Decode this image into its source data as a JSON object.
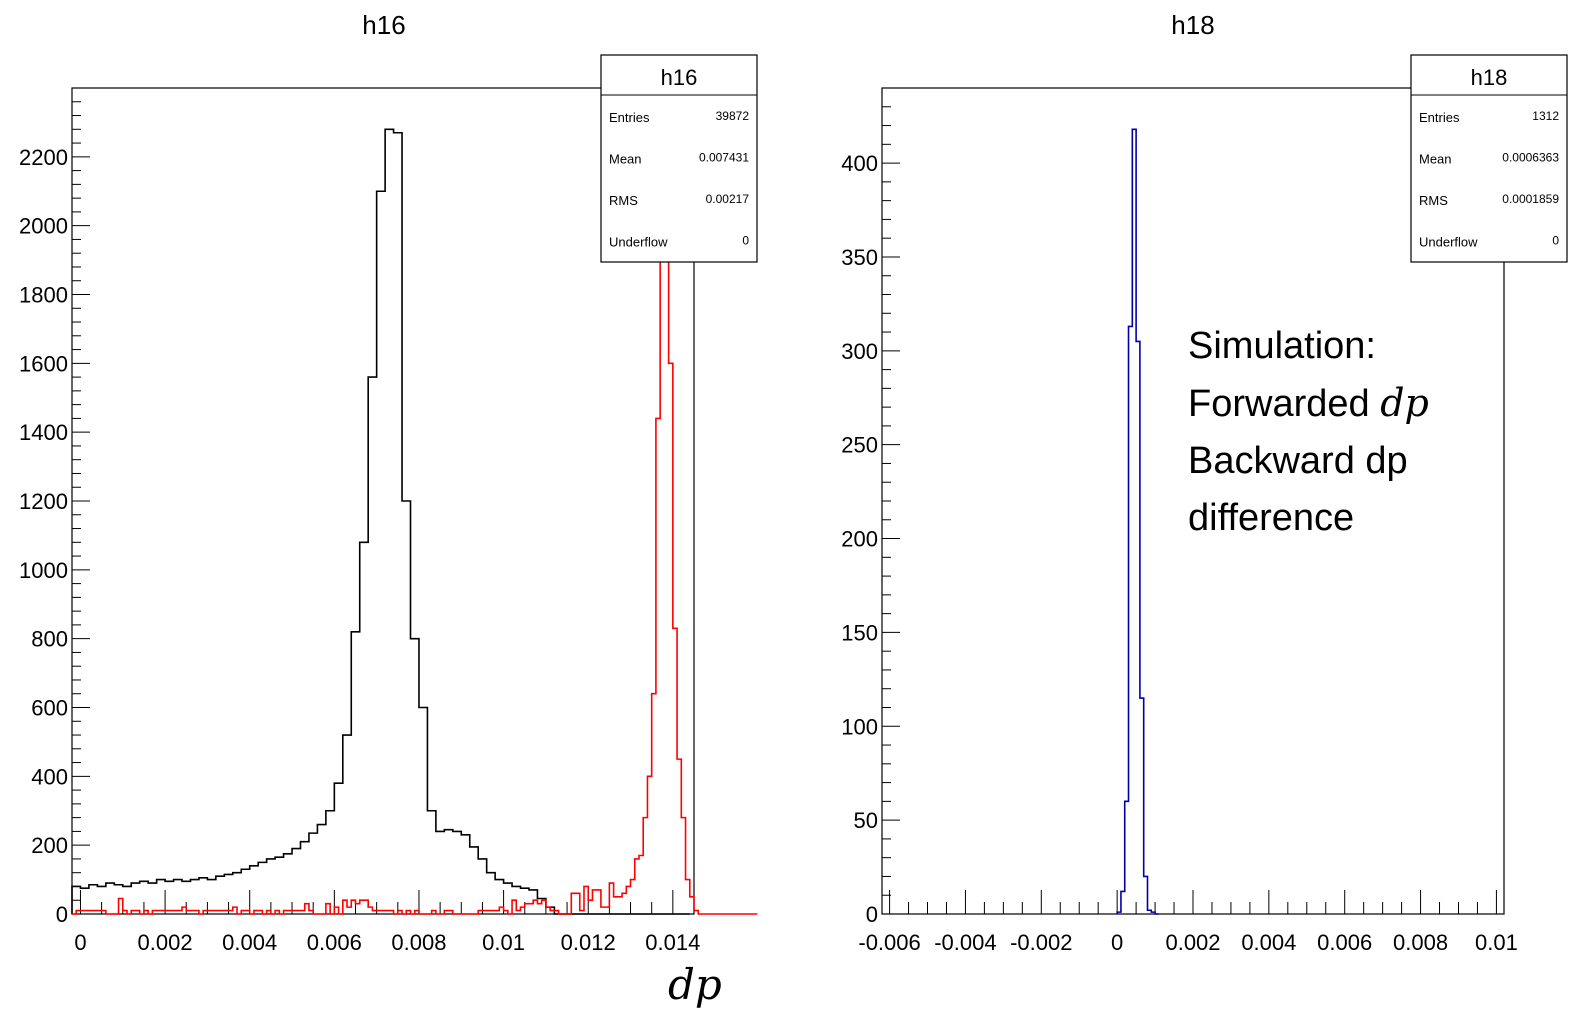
{
  "chart_data": [
    {
      "type": "histogram",
      "title": "h16",
      "xlabel": "dp",
      "ylabel": "",
      "xlim": [
        -0.0002,
        0.0145
      ],
      "ylim": [
        0,
        2400
      ],
      "xticks": [
        "0",
        "0.002",
        "0.004",
        "0.006",
        "0.008",
        "0.01",
        "0.012",
        "0.014"
      ],
      "xtick_values": [
        0,
        0.002,
        0.004,
        0.006,
        0.008,
        0.01,
        0.012,
        0.014
      ],
      "yticks": [
        "0",
        "200",
        "400",
        "600",
        "800",
        "1000",
        "1200",
        "1400",
        "1600",
        "1800",
        "2000",
        "2200"
      ],
      "ytick_values": [
        0,
        200,
        400,
        600,
        800,
        1000,
        1200,
        1400,
        1600,
        1800,
        2000,
        2200
      ],
      "stats": {
        "name": "h16",
        "rows": [
          {
            "label": "Entries",
            "value": "39872"
          },
          {
            "label": "Mean",
            "value": "0.007431"
          },
          {
            "label": "RMS",
            "value": "0.00217"
          },
          {
            "label": "Underflow",
            "value": "0"
          }
        ]
      },
      "series": [
        {
          "color": "#000000",
          "bin_start": -0.0002,
          "bin_width": 0.0002,
          "values": [
            80,
            75,
            85,
            80,
            90,
            85,
            80,
            90,
            95,
            90,
            100,
            95,
            100,
            95,
            100,
            105,
            100,
            110,
            115,
            120,
            130,
            140,
            150,
            160,
            165,
            175,
            190,
            210,
            235,
            260,
            300,
            380,
            520,
            820,
            1080,
            1560,
            2100,
            2280,
            2270,
            1200,
            800,
            600,
            300,
            240,
            245,
            240,
            230,
            195,
            160,
            120,
            100,
            90,
            80,
            75,
            70,
            45,
            20,
            0,
            0,
            0,
            0,
            0,
            0,
            0,
            0,
            0,
            0,
            0,
            0,
            0,
            0,
            0,
            0
          ]
        },
        {
          "color": "#ff0000",
          "bin_start": -0.0002,
          "bin_width": 0.0001,
          "values": [
            0,
            10,
            10,
            10,
            10,
            10,
            10,
            10,
            0,
            0,
            0,
            45,
            10,
            0,
            10,
            10,
            0,
            10,
            0,
            10,
            10,
            10,
            10,
            10,
            10,
            10,
            20,
            10,
            10,
            10,
            0,
            10,
            10,
            10,
            10,
            10,
            10,
            10,
            20,
            0,
            10,
            10,
            0,
            10,
            10,
            0,
            10,
            0,
            10,
            0,
            10,
            10,
            10,
            10,
            10,
            30,
            10,
            0,
            0,
            0,
            30,
            0,
            20,
            0,
            40,
            20,
            40,
            30,
            40,
            40,
            20,
            10,
            10,
            10,
            10,
            10,
            0,
            10,
            0,
            10,
            0,
            10,
            0,
            0,
            0,
            10,
            0,
            0,
            10,
            10,
            0,
            0,
            0,
            0,
            0,
            0,
            10,
            10,
            10,
            10,
            10,
            20,
            10,
            0,
            40,
            10,
            20,
            30,
            30,
            40,
            30,
            40,
            20,
            10,
            10,
            0,
            0,
            0,
            60,
            60,
            10,
            80,
            40,
            70,
            70,
            20,
            20,
            90,
            50,
            50,
            60,
            80,
            100,
            160,
            170,
            280,
            400,
            640,
            1440,
            2270,
            2270,
            1600,
            830,
            450,
            280,
            100,
            50,
            10,
            0,
            0,
            0,
            0,
            0,
            0,
            0,
            0,
            0,
            0,
            0,
            0,
            0,
            0
          ]
        }
      ]
    },
    {
      "type": "histogram",
      "title": "h18",
      "xlabel": "",
      "ylabel": "",
      "xlim": [
        -0.0062,
        0.0102
      ],
      "ylim": [
        0,
        440
      ],
      "xticks": [
        "-0.006",
        "-0.004",
        "-0.002",
        "0",
        "0.002",
        "0.004",
        "0.006",
        "0.008",
        "0.01"
      ],
      "xtick_values": [
        -0.006,
        -0.004,
        -0.002,
        0,
        0.002,
        0.004,
        0.006,
        0.008,
        0.01
      ],
      "yticks": [
        "0",
        "50",
        "100",
        "150",
        "200",
        "250",
        "300",
        "350",
        "400"
      ],
      "ytick_values": [
        0,
        50,
        100,
        150,
        200,
        250,
        300,
        350,
        400
      ],
      "stats": {
        "name": "h18",
        "rows": [
          {
            "label": "Entries",
            "value": "1312"
          },
          {
            "label": "Mean",
            "value": "0.0006363"
          },
          {
            "label": "RMS",
            "value": "0.0001859"
          },
          {
            "label": "Underflow",
            "value": "0"
          }
        ]
      },
      "series": [
        {
          "color": "#0000aa",
          "bin_start": 0,
          "bin_width": 0.0001,
          "values": [
            1,
            12,
            60,
            313,
            418,
            305,
            115,
            20,
            2,
            1,
            0
          ]
        }
      ],
      "annotation": {
        "line1": "Simulation:",
        "line2_text": "Forwarded ",
        "line2_math": "dp",
        "line3": "Backward dp",
        "line4": "difference"
      }
    }
  ]
}
